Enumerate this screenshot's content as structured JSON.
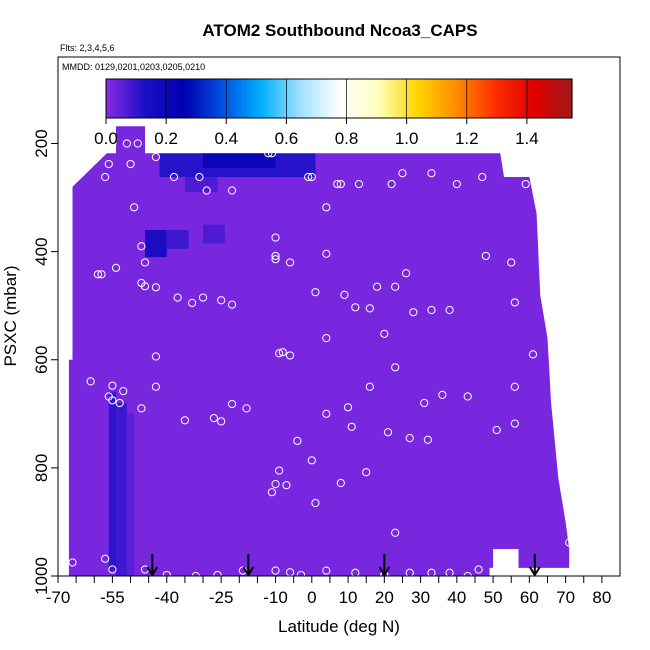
{
  "chart_data": {
    "type": "heatmap",
    "title": "ATOM2 Southbound Ncoa3_CAPS",
    "subtitle_flights": "Flts: 2,3,4,5,6",
    "subtitle_dates": "MMDD: 0129,0201,0203,0205,0210",
    "xlabel": "Latitude (deg N)",
    "ylabel": "PSXC (mbar)",
    "xlim": [
      -70,
      85
    ],
    "ylim": [
      1000,
      40
    ],
    "x_ticks": [
      -70,
      -55,
      -40,
      -25,
      -10,
      0,
      10,
      20,
      30,
      40,
      50,
      60,
      70,
      80
    ],
    "x_tick_labels": [
      "-70",
      "-55",
      "-40",
      "-25",
      "-10",
      "0",
      "10",
      "20",
      "30",
      "40",
      "50",
      "60",
      "70",
      "80"
    ],
    "x_minor_ticks": [
      -65,
      -60,
      -50,
      -45,
      -35,
      -30,
      -20,
      -15,
      -5,
      5,
      15,
      25,
      35,
      45,
      55,
      65,
      75
    ],
    "y_ticks": [
      200,
      400,
      600,
      800,
      1000
    ],
    "y_tick_labels": [
      "200",
      "400",
      "600",
      "800",
      "1000"
    ],
    "colorbar": {
      "range": [
        0,
        1.55
      ],
      "ticks": [
        0.0,
        0.2,
        0.4,
        0.6,
        0.8,
        1.0,
        1.2,
        1.4
      ],
      "tick_labels": [
        "0.0",
        "0.2",
        "0.4",
        "0.6",
        "0.8",
        "1.0",
        "1.2",
        "1.4"
      ],
      "colors": [
        "#8a2be2",
        "#1a10c8",
        "#0000b0",
        "#0050e0",
        "#00b0ff",
        "#a0e0ff",
        "#ffffff",
        "#ffffc0",
        "#ffd700",
        "#ff8c00",
        "#ff3000",
        "#e00000",
        "#a01818"
      ]
    },
    "background_value": 0.02,
    "domain_outline": [
      [
        -56.5,
        218
      ],
      [
        -54,
        218
      ],
      [
        -54,
        168
      ],
      [
        -46,
        168
      ],
      [
        -46,
        218
      ],
      [
        52,
        218
      ],
      [
        53,
        262
      ],
      [
        60,
        262
      ],
      [
        62,
        330
      ],
      [
        63,
        480
      ],
      [
        65,
        560
      ],
      [
        66,
        680
      ],
      [
        68,
        820
      ],
      [
        70,
        900
      ],
      [
        71,
        950
      ],
      [
        71,
        985
      ],
      [
        49,
        985
      ],
      [
        49,
        1000
      ],
      [
        -67,
        1000
      ],
      [
        -67,
        600
      ],
      [
        -66,
        600
      ],
      [
        -66,
        280
      ]
    ],
    "missing_region": [
      [
        50,
        950
      ],
      [
        57,
        950
      ],
      [
        57,
        1000
      ],
      [
        50,
        1000
      ]
    ],
    "enhanced_patches": [
      {
        "lat_min": -56,
        "lat_max": -54,
        "p_min": 660,
        "p_max": 990,
        "value": 0.12
      },
      {
        "lat_min": -54,
        "lat_max": -51,
        "p_min": 680,
        "p_max": 1000,
        "value": 0.1
      },
      {
        "lat_min": -51,
        "lat_max": -49,
        "p_min": 700,
        "p_max": 1000,
        "value": 0.06
      },
      {
        "lat_min": -42,
        "lat_max": 1,
        "p_min": 218,
        "p_max": 262,
        "value": 0.14
      },
      {
        "lat_min": -30,
        "lat_max": -10,
        "p_min": 218,
        "p_max": 245,
        "value": 0.22
      },
      {
        "lat_min": -35,
        "lat_max": -26,
        "p_min": 262,
        "p_max": 290,
        "value": 0.08
      },
      {
        "lat_min": -46,
        "lat_max": -40,
        "p_min": 360,
        "p_max": 410,
        "value": 0.2
      },
      {
        "lat_min": -40,
        "lat_max": -34,
        "p_min": 360,
        "p_max": 395,
        "value": 0.1
      },
      {
        "lat_min": -30,
        "lat_max": -24,
        "p_min": 350,
        "p_max": 385,
        "value": 0.08
      }
    ],
    "obs_points": [
      {
        "lat": -55,
        "p": 200
      },
      {
        "lat": -51,
        "p": 200
      },
      {
        "lat": -48,
        "p": 200
      },
      {
        "lat": -43,
        "p": 225
      },
      {
        "lat": -56,
        "p": 238
      },
      {
        "lat": -50,
        "p": 238
      },
      {
        "lat": -57,
        "p": 262
      },
      {
        "lat": -38,
        "p": 262
      },
      {
        "lat": -31,
        "p": 262
      },
      {
        "lat": -29,
        "p": 287
      },
      {
        "lat": -22,
        "p": 287
      },
      {
        "lat": -12,
        "p": 218
      },
      {
        "lat": -11,
        "p": 218
      },
      {
        "lat": -1,
        "p": 262
      },
      {
        "lat": 0,
        "p": 262
      },
      {
        "lat": 7,
        "p": 275
      },
      {
        "lat": 8,
        "p": 275
      },
      {
        "lat": 13,
        "p": 275
      },
      {
        "lat": 22,
        "p": 275
      },
      {
        "lat": 25,
        "p": 255
      },
      {
        "lat": 33,
        "p": 255
      },
      {
        "lat": 40,
        "p": 275
      },
      {
        "lat": 47,
        "p": 262
      },
      {
        "lat": 59,
        "p": 275
      },
      {
        "lat": -49,
        "p": 318
      },
      {
        "lat": 4,
        "p": 318
      },
      {
        "lat": -10,
        "p": 374
      },
      {
        "lat": -10,
        "p": 408
      },
      {
        "lat": -10,
        "p": 414
      },
      {
        "lat": -6,
        "p": 420
      },
      {
        "lat": 4,
        "p": 404
      },
      {
        "lat": -47,
        "p": 390
      },
      {
        "lat": -46,
        "p": 420
      },
      {
        "lat": -59,
        "p": 442
      },
      {
        "lat": -58,
        "p": 442
      },
      {
        "lat": -54,
        "p": 430
      },
      {
        "lat": -47,
        "p": 458
      },
      {
        "lat": -46,
        "p": 464
      },
      {
        "lat": -43,
        "p": 466
      },
      {
        "lat": -37,
        "p": 485
      },
      {
        "lat": -33,
        "p": 495
      },
      {
        "lat": -30,
        "p": 485
      },
      {
        "lat": -25,
        "p": 490
      },
      {
        "lat": -22,
        "p": 498
      },
      {
        "lat": 1,
        "p": 475
      },
      {
        "lat": 9,
        "p": 480
      },
      {
        "lat": 12,
        "p": 503
      },
      {
        "lat": 18,
        "p": 465
      },
      {
        "lat": 23,
        "p": 465
      },
      {
        "lat": 26,
        "p": 440
      },
      {
        "lat": 28,
        "p": 512
      },
      {
        "lat": 33,
        "p": 508
      },
      {
        "lat": 38,
        "p": 508
      },
      {
        "lat": 48,
        "p": 408
      },
      {
        "lat": 55,
        "p": 420
      },
      {
        "lat": 56,
        "p": 494
      },
      {
        "lat": 61,
        "p": 590
      },
      {
        "lat": 4,
        "p": 560
      },
      {
        "lat": 20,
        "p": 552
      },
      {
        "lat": 16,
        "p": 505
      },
      {
        "lat": -9,
        "p": 588
      },
      {
        "lat": -8,
        "p": 586
      },
      {
        "lat": -6,
        "p": 592
      },
      {
        "lat": -43,
        "p": 594
      },
      {
        "lat": 23,
        "p": 614
      },
      {
        "lat": -61,
        "p": 640
      },
      {
        "lat": -55,
        "p": 648
      },
      {
        "lat": -52,
        "p": 658
      },
      {
        "lat": -56,
        "p": 668
      },
      {
        "lat": -55,
        "p": 675
      },
      {
        "lat": -53,
        "p": 680
      },
      {
        "lat": -47,
        "p": 690
      },
      {
        "lat": -43,
        "p": 650
      },
      {
        "lat": -35,
        "p": 712
      },
      {
        "lat": -27,
        "p": 708
      },
      {
        "lat": -25,
        "p": 714
      },
      {
        "lat": -22,
        "p": 682
      },
      {
        "lat": -18,
        "p": 690
      },
      {
        "lat": 4,
        "p": 700
      },
      {
        "lat": 10,
        "p": 688
      },
      {
        "lat": 11,
        "p": 724
      },
      {
        "lat": 16,
        "p": 650
      },
      {
        "lat": 21,
        "p": 734
      },
      {
        "lat": 31,
        "p": 680
      },
      {
        "lat": 36,
        "p": 665
      },
      {
        "lat": 43,
        "p": 668
      },
      {
        "lat": 51,
        "p": 730
      },
      {
        "lat": 56,
        "p": 650
      },
      {
        "lat": 56,
        "p": 718
      },
      {
        "lat": -4,
        "p": 750
      },
      {
        "lat": 27,
        "p": 745
      },
      {
        "lat": 32,
        "p": 748
      },
      {
        "lat": -11,
        "p": 845
      },
      {
        "lat": -10,
        "p": 830
      },
      {
        "lat": -9,
        "p": 805
      },
      {
        "lat": -7,
        "p": 832
      },
      {
        "lat": 0,
        "p": 786
      },
      {
        "lat": 1,
        "p": 865
      },
      {
        "lat": 8,
        "p": 828
      },
      {
        "lat": 15,
        "p": 808
      },
      {
        "lat": 23,
        "p": 920
      },
      {
        "lat": 71,
        "p": 938
      },
      {
        "lat": -66,
        "p": 975
      },
      {
        "lat": -57,
        "p": 968
      },
      {
        "lat": -55,
        "p": 988
      },
      {
        "lat": -46,
        "p": 988
      },
      {
        "lat": -40,
        "p": 998
      },
      {
        "lat": -32,
        "p": 1000
      },
      {
        "lat": -26,
        "p": 998
      },
      {
        "lat": -19,
        "p": 990
      },
      {
        "lat": -10,
        "p": 990
      },
      {
        "lat": -6,
        "p": 993
      },
      {
        "lat": -3,
        "p": 998
      },
      {
        "lat": 4,
        "p": 990
      },
      {
        "lat": 12,
        "p": 994
      },
      {
        "lat": 20,
        "p": 998
      },
      {
        "lat": 27,
        "p": 994
      },
      {
        "lat": 33,
        "p": 994
      },
      {
        "lat": 38,
        "p": 994
      },
      {
        "lat": 43,
        "p": 1000
      },
      {
        "lat": 46,
        "p": 988
      },
      {
        "lat": 20,
        "p": 1000
      }
    ],
    "flight_arrows_lat": [
      -44,
      -17.5,
      20,
      61.5
    ]
  }
}
